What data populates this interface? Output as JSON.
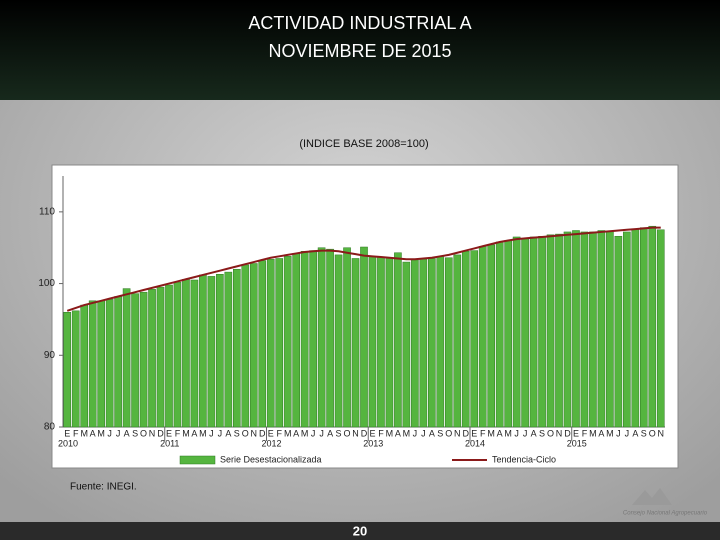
{
  "slide": {
    "title_lines": [
      "ACTIVIDAD INDUSTRIAL A",
      "NOVIEMBRE DE 2015"
    ],
    "source": "Fuente: INEGI.",
    "page_number": "20",
    "logo_text": "Consejo Nacional Agropecuario"
  },
  "chart_data": {
    "type": "bar",
    "subtitle": "(INDICE BASE 2008=100)",
    "categories": [
      "E",
      "F",
      "M",
      "A",
      "M",
      "J",
      "J",
      "A",
      "S",
      "O",
      "N",
      "D",
      "E",
      "F",
      "M",
      "A",
      "M",
      "J",
      "J",
      "A",
      "S",
      "O",
      "N",
      "D",
      "E",
      "F",
      "M",
      "A",
      "M",
      "J",
      "J",
      "A",
      "S",
      "O",
      "N",
      "D",
      "E",
      "F",
      "M",
      "A",
      "M",
      "J",
      "J",
      "A",
      "S",
      "O",
      "N",
      "D",
      "E",
      "F",
      "M",
      "A",
      "M",
      "J",
      "J",
      "A",
      "S",
      "O",
      "N",
      "D",
      "E",
      "F",
      "M",
      "A",
      "M",
      "J",
      "J",
      "A",
      "S",
      "O",
      "N"
    ],
    "years": [
      "2010",
      "2011",
      "2012",
      "2013",
      "2014",
      "2015"
    ],
    "series": [
      {
        "name": "Serie Desestacionalizada",
        "color": "#55b53f",
        "values": [
          96.0,
          96.2,
          97.0,
          97.6,
          97.6,
          97.8,
          98.2,
          99.3,
          98.6,
          98.8,
          99.2,
          99.5,
          99.8,
          100.2,
          100.6,
          100.5,
          101.2,
          101.0,
          101.3,
          101.6,
          102.0,
          102.6,
          102.8,
          103.2,
          103.4,
          103.5,
          103.8,
          104.2,
          104.5,
          104.6,
          105.0,
          104.8,
          104.0,
          105.0,
          103.5,
          105.1,
          103.8,
          103.7,
          103.6,
          104.3,
          103.0,
          103.3,
          103.4,
          103.5,
          103.8,
          103.6,
          104.0,
          104.5,
          104.6,
          105.2,
          105.4,
          105.8,
          106.0,
          106.5,
          106.3,
          106.5,
          106.6,
          106.8,
          106.9,
          107.2,
          107.4,
          107.2,
          107.2,
          107.4,
          107.3,
          106.6,
          107.2,
          107.6,
          107.8,
          108.0,
          107.5
        ]
      },
      {
        "name": "Tendencia-Ciclo",
        "color": "#8b1a1a",
        "type": "line",
        "values": [
          96.2,
          96.6,
          97.0,
          97.3,
          97.6,
          97.9,
          98.2,
          98.5,
          98.8,
          99.1,
          99.4,
          99.7,
          100.0,
          100.3,
          100.6,
          100.9,
          101.2,
          101.5,
          101.8,
          102.1,
          102.4,
          102.7,
          103.0,
          103.3,
          103.6,
          103.8,
          104.0,
          104.2,
          104.4,
          104.5,
          104.6,
          104.6,
          104.5,
          104.3,
          104.1,
          103.9,
          103.8,
          103.7,
          103.6,
          103.5,
          103.4,
          103.4,
          103.5,
          103.6,
          103.8,
          104.0,
          104.3,
          104.6,
          104.9,
          105.2,
          105.5,
          105.8,
          106.0,
          106.2,
          106.3,
          106.4,
          106.5,
          106.6,
          106.7,
          106.8,
          106.9,
          107.0,
          107.1,
          107.2,
          107.3,
          107.4,
          107.5,
          107.6,
          107.7,
          107.8,
          107.8
        ]
      }
    ],
    "ylim": [
      80,
      115
    ],
    "yticks": [
      80,
      90,
      100,
      110
    ],
    "grid": false
  }
}
